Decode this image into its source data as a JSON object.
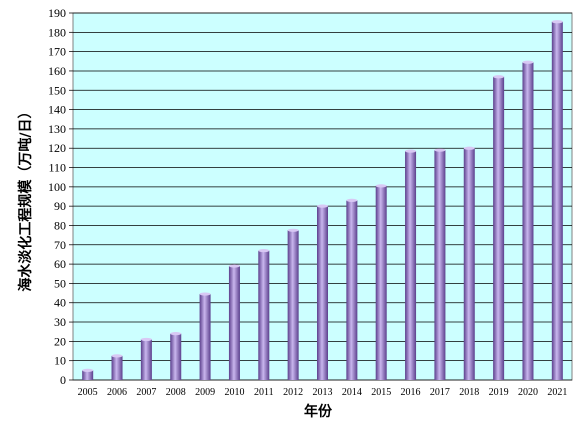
{
  "chart_data": {
    "type": "bar",
    "categories": [
      "2005",
      "2006",
      "2007",
      "2008",
      "2009",
      "2010",
      "2011",
      "2012",
      "2013",
      "2014",
      "2015",
      "2016",
      "2017",
      "2018",
      "2019",
      "2020",
      "2021"
    ],
    "values": [
      5,
      12.5,
      21,
      24,
      44.5,
      59,
      67,
      77.5,
      90,
      93,
      100.5,
      118.5,
      119,
      120,
      157,
      164.5,
      185.5
    ],
    "xlabel": "年份",
    "ylabel": "海水淡化工程规模（万吨/日）",
    "ylim": [
      0,
      190
    ],
    "yticks": [
      0,
      10,
      20,
      30,
      40,
      50,
      60,
      70,
      80,
      90,
      100,
      110,
      120,
      130,
      140,
      150,
      160,
      170,
      180,
      190
    ],
    "grid": true,
    "colors": {
      "plot_background": "#ccffff",
      "bar": "#9b7fc9",
      "grid": "#000000"
    }
  }
}
